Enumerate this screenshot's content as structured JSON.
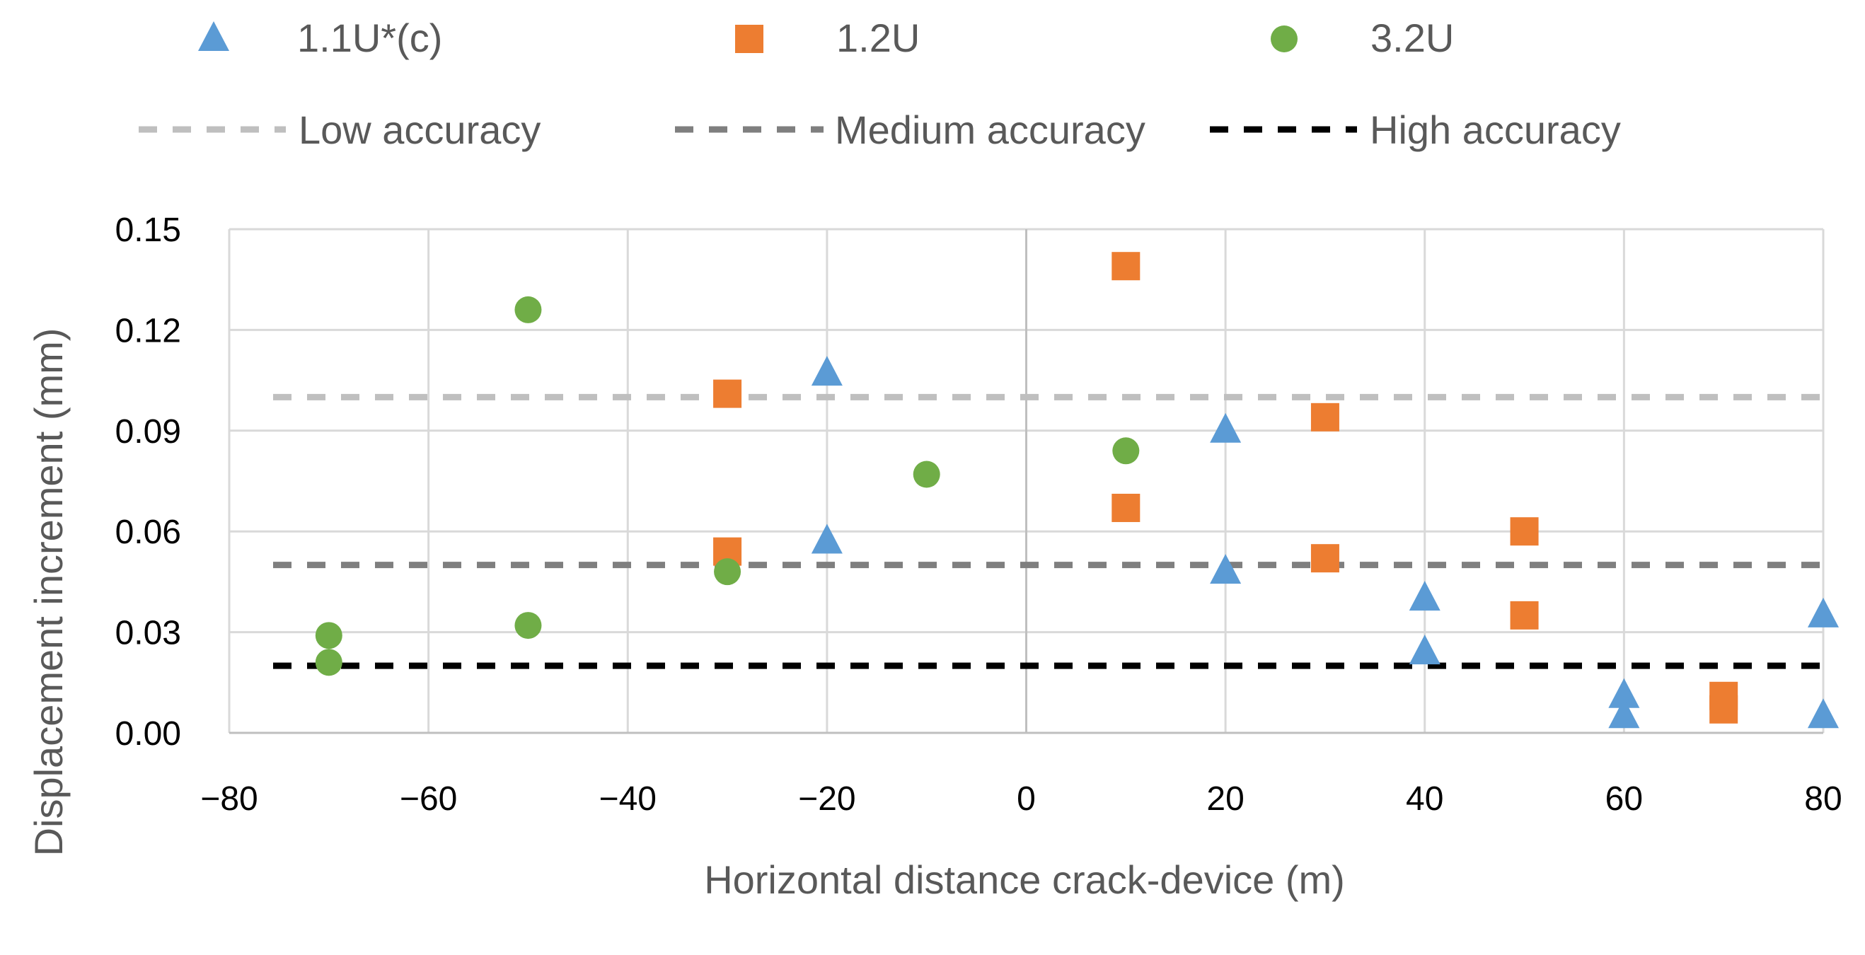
{
  "chart_data": {
    "type": "scatter",
    "title": "",
    "xlabel": "Horizontal distance crack-device (m)",
    "ylabel": "Displacement increment (mm)",
    "xlim": [
      -80,
      80
    ],
    "ylim": [
      0,
      0.15
    ],
    "x_ticks": [
      "−80",
      "−60",
      "−40",
      "−20",
      "0",
      "20",
      "40",
      "60",
      "80"
    ],
    "x_tick_values": [
      -80,
      -60,
      -40,
      -20,
      0,
      20,
      40,
      60,
      80
    ],
    "y_ticks": [
      "0.00",
      "0.03",
      "0.06",
      "0.09",
      "0.12",
      "0.15"
    ],
    "y_tick_values": [
      0,
      0.03,
      0.06,
      0.09,
      0.12,
      0.15
    ],
    "grid": true,
    "legend_position": "top",
    "series": [
      {
        "name": "1.1U*(c)",
        "marker": "triangle",
        "color": "#5B9BD5",
        "points": [
          {
            "x": -20,
            "y": 0.107
          },
          {
            "x": -20,
            "y": 0.057
          },
          {
            "x": 20,
            "y": 0.09
          },
          {
            "x": 20,
            "y": 0.048
          },
          {
            "x": 40,
            "y": 0.04
          },
          {
            "x": 40,
            "y": 0.024
          },
          {
            "x": 60,
            "y": 0.011
          },
          {
            "x": 60,
            "y": 0.005
          },
          {
            "x": 80,
            "y": 0.035
          },
          {
            "x": 80,
            "y": 0.005
          }
        ]
      },
      {
        "name": "1.2U",
        "marker": "square",
        "color": "#ED7D31",
        "points": [
          {
            "x": -30,
            "y": 0.101
          },
          {
            "x": -30,
            "y": 0.054
          },
          {
            "x": 10,
            "y": 0.139
          },
          {
            "x": 10,
            "y": 0.067
          },
          {
            "x": 30,
            "y": 0.094
          },
          {
            "x": 30,
            "y": 0.052
          },
          {
            "x": 50,
            "y": 0.06
          },
          {
            "x": 50,
            "y": 0.035
          },
          {
            "x": 70,
            "y": 0.011
          },
          {
            "x": 70,
            "y": 0.007
          }
        ]
      },
      {
        "name": "3.2U",
        "marker": "circle",
        "color": "#70AD47",
        "points": [
          {
            "x": -70,
            "y": 0.029
          },
          {
            "x": -70,
            "y": 0.021
          },
          {
            "x": -50,
            "y": 0.126
          },
          {
            "x": -50,
            "y": 0.032
          },
          {
            "x": -30,
            "y": 0.048
          },
          {
            "x": -10,
            "y": 0.077
          },
          {
            "x": 10,
            "y": 0.084
          }
        ]
      }
    ],
    "reference_lines": [
      {
        "name": "Low accuracy",
        "y": 0.1,
        "color": "#BFBFBF"
      },
      {
        "name": "Medium accuracy",
        "y": 0.05,
        "color": "#7F7F7F"
      },
      {
        "name": "High accuracy",
        "y": 0.02,
        "color": "#000000"
      }
    ]
  }
}
